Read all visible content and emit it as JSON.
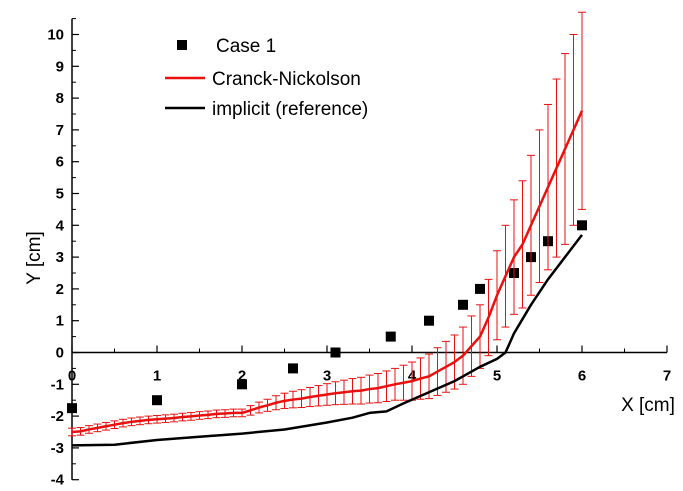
{
  "chart_data": {
    "type": "line",
    "xlabel": "X [cm]",
    "ylabel": "Y [cm]",
    "xlim": [
      0,
      7
    ],
    "ylim": [
      -4,
      10.5
    ],
    "x_ticks": [
      0,
      1,
      2,
      3,
      4,
      5,
      6,
      7
    ],
    "y_ticks": [
      -4,
      -3,
      -2,
      -1,
      0,
      1,
      2,
      3,
      4,
      5,
      6,
      7,
      8,
      9,
      10
    ],
    "legend_position": "top-left",
    "grid": false,
    "series": [
      {
        "name": "Case 1",
        "kind": "scatter",
        "color": "#000000",
        "marker": "square",
        "x": [
          0,
          1,
          2,
          2.6,
          3.1,
          3.75,
          4.2,
          4.6,
          4.8,
          5.2,
          5.4,
          5.6,
          6.0
        ],
        "y": [
          -1.75,
          -1.5,
          -1.0,
          -0.5,
          0.0,
          0.5,
          1.0,
          1.5,
          2.0,
          2.5,
          3.0,
          3.5,
          4.0
        ]
      },
      {
        "name": "Cranck-Nickolson",
        "kind": "line",
        "color": "#e8110f",
        "error_bars": true,
        "x": [
          0,
          0.1,
          0.2,
          0.3,
          0.4,
          0.5,
          0.6,
          0.7,
          0.8,
          0.9,
          1.0,
          1.1,
          1.2,
          1.3,
          1.4,
          1.5,
          1.6,
          1.7,
          1.8,
          1.9,
          2.0,
          2.1,
          2.2,
          2.3,
          2.4,
          2.5,
          2.6,
          2.7,
          2.8,
          2.9,
          3.0,
          3.1,
          3.2,
          3.3,
          3.4,
          3.5,
          3.6,
          3.7,
          3.8,
          3.9,
          4.0,
          4.1,
          4.2,
          4.3,
          4.4,
          4.5,
          4.6,
          4.7,
          4.8,
          4.9,
          5.0,
          5.1,
          5.2,
          5.3,
          5.4,
          5.5,
          5.6,
          5.7,
          5.8,
          5.9,
          6.0
        ],
        "y": [
          -2.5,
          -2.48,
          -2.42,
          -2.37,
          -2.32,
          -2.27,
          -2.22,
          -2.18,
          -2.15,
          -2.12,
          -2.1,
          -2.08,
          -2.06,
          -2.03,
          -2.01,
          -1.98,
          -1.96,
          -1.93,
          -1.92,
          -1.9,
          -1.9,
          -1.82,
          -1.73,
          -1.66,
          -1.58,
          -1.52,
          -1.48,
          -1.45,
          -1.4,
          -1.36,
          -1.32,
          -1.28,
          -1.25,
          -1.22,
          -1.2,
          -1.15,
          -1.12,
          -1.06,
          -1.0,
          -0.95,
          -0.9,
          -0.82,
          -0.75,
          -0.6,
          -0.45,
          -0.3,
          -0.1,
          0.2,
          0.5,
          1.1,
          1.8,
          2.4,
          3.0,
          3.4,
          4.0,
          4.6,
          5.2,
          5.8,
          6.4,
          7.0,
          7.6
        ],
        "err": [
          0.12,
          0.12,
          0.12,
          0.12,
          0.12,
          0.12,
          0.12,
          0.12,
          0.12,
          0.12,
          0.12,
          0.12,
          0.12,
          0.12,
          0.12,
          0.12,
          0.12,
          0.12,
          0.12,
          0.12,
          0.12,
          0.15,
          0.17,
          0.19,
          0.22,
          0.24,
          0.26,
          0.28,
          0.3,
          0.32,
          0.34,
          0.36,
          0.38,
          0.4,
          0.42,
          0.44,
          0.46,
          0.48,
          0.5,
          0.55,
          0.6,
          0.65,
          0.7,
          0.75,
          0.8,
          0.85,
          0.9,
          0.95,
          1.0,
          1.2,
          1.4,
          1.6,
          1.8,
          2.0,
          2.2,
          2.4,
          2.6,
          2.8,
          3.0,
          3.0,
          3.1
        ]
      },
      {
        "name": "implicit (reference)",
        "kind": "line",
        "color": "#000000",
        "x": [
          0,
          0.5,
          1.0,
          1.5,
          2.0,
          2.5,
          3.0,
          3.3,
          3.5,
          3.7,
          3.9,
          4.2,
          4.5,
          4.8,
          5.0,
          5.1,
          5.2,
          5.4,
          5.6,
          5.8,
          6.0
        ],
        "y": [
          -2.92,
          -2.9,
          -2.75,
          -2.65,
          -2.55,
          -2.42,
          -2.2,
          -2.05,
          -1.9,
          -1.85,
          -1.6,
          -1.25,
          -0.9,
          -0.45,
          -0.2,
          0.0,
          0.6,
          1.5,
          2.3,
          3.0,
          3.7
        ]
      }
    ]
  }
}
